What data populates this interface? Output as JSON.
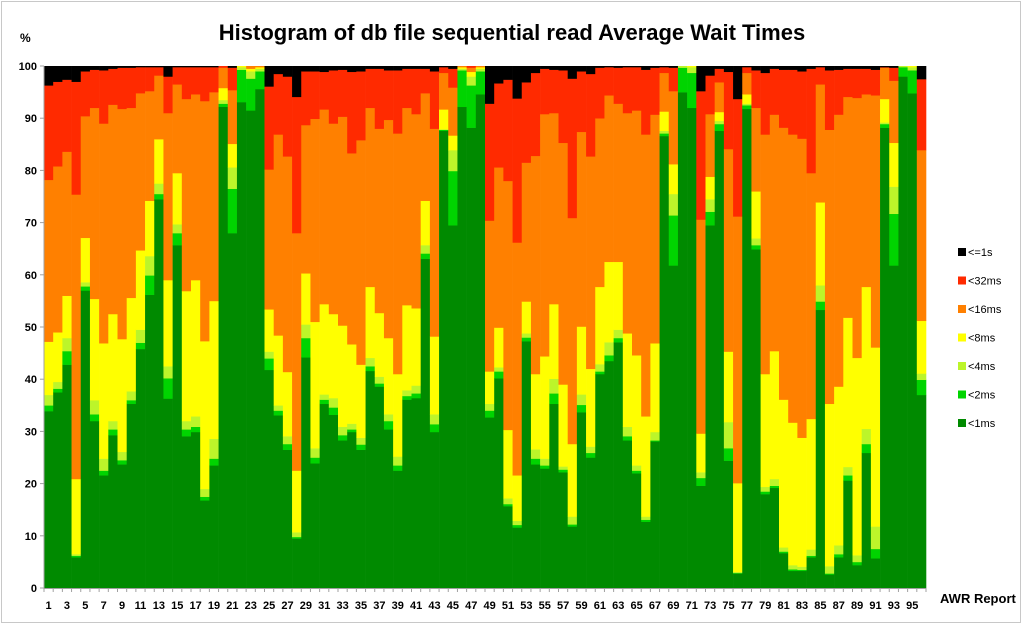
{
  "chart_data": {
    "type": "bar",
    "stacked": "100%",
    "title": "Histogram of db file sequential read Average Wait Times",
    "ylabel": "%",
    "xlabel": "AWR Report",
    "ylim": [
      0,
      100
    ],
    "yticks": [
      0,
      10,
      20,
      30,
      40,
      50,
      60,
      70,
      80,
      90,
      100
    ],
    "grid": false,
    "legend_position": "right",
    "series_names": [
      "<1ms",
      "<2ms",
      "<4ms",
      "<8ms",
      "<16ms",
      "<32ms",
      "<=1s"
    ],
    "colors": [
      "#008a00",
      "#00d400",
      "#bcf52a",
      "#ffff00",
      "#ff8000",
      "#ff2a00",
      "#000000"
    ],
    "legend_order": [
      "<=1s",
      "<32ms",
      "<16ms",
      "<8ms",
      "<4ms",
      "<2ms",
      "<1ms"
    ],
    "categories": [
      1,
      2,
      3,
      4,
      5,
      6,
      7,
      8,
      9,
      10,
      11,
      12,
      13,
      14,
      15,
      16,
      17,
      18,
      19,
      20,
      21,
      22,
      23,
      24,
      25,
      26,
      27,
      28,
      29,
      30,
      31,
      32,
      33,
      34,
      35,
      36,
      37,
      38,
      39,
      40,
      41,
      42,
      43,
      44,
      45,
      46,
      47,
      48,
      49,
      50,
      51,
      52,
      53,
      54,
      55,
      56,
      57,
      58,
      59,
      60,
      61,
      62,
      63,
      64,
      65,
      66,
      67,
      68,
      69,
      70,
      71,
      72,
      73,
      74,
      75,
      76,
      77,
      78,
      79,
      80,
      81,
      82,
      83,
      84,
      85,
      86,
      87,
      88,
      89,
      90,
      91,
      92,
      93,
      94,
      95,
      96
    ],
    "xtick_labels": [
      "1",
      "3",
      "5",
      "7",
      "9",
      "11",
      "13",
      "15",
      "17",
      "19",
      "21",
      "23",
      "25",
      "27",
      "29",
      "31",
      "33",
      "35",
      "37",
      "39",
      "41",
      "43",
      "45",
      "47",
      "49",
      "51",
      "53",
      "55",
      "57",
      "59",
      "61",
      "63",
      "65",
      "67",
      "69",
      "71",
      "73",
      "75",
      "77",
      "79",
      "81",
      "83",
      "85",
      "87",
      "89",
      "91",
      "93",
      "95"
    ],
    "values_by_report": [
      [
        33.9,
        1.1,
        2.0,
        10.2,
        31.0,
        18.1,
        3.7
      ],
      [
        37.5,
        0.7,
        1.3,
        9.5,
        31.8,
        16.2,
        3.0
      ],
      [
        42.8,
        2.6,
        2.5,
        8.1,
        27.6,
        13.8,
        2.6
      ],
      [
        5.9,
        0.3,
        0.3,
        14.4,
        54.5,
        21.6,
        3.0
      ],
      [
        57.0,
        0.8,
        0.8,
        8.5,
        23.3,
        8.6,
        1.0
      ],
      [
        32.0,
        1.3,
        2.7,
        19.4,
        36.6,
        7.3,
        0.7
      ],
      [
        21.6,
        0.9,
        2.3,
        22.1,
        42.1,
        10.2,
        0.8
      ],
      [
        29.3,
        1.1,
        1.6,
        20.5,
        40.1,
        6.9,
        0.5
      ],
      [
        23.7,
        0.8,
        1.6,
        21.6,
        44.1,
        7.9,
        0.3
      ],
      [
        35.3,
        0.7,
        1.7,
        17.9,
        36.4,
        7.7,
        0.3
      ],
      [
        45.8,
        1.2,
        2.5,
        15.2,
        30.1,
        5.0,
        0.2
      ],
      [
        56.2,
        3.7,
        3.7,
        10.6,
        21.0,
        4.6,
        0.2
      ],
      [
        74.5,
        1.0,
        2.0,
        8.5,
        12.2,
        1.6,
        0.2
      ],
      [
        36.3,
        3.9,
        2.3,
        16.5,
        32.0,
        7.0,
        2.0
      ],
      [
        65.7,
        2.3,
        1.7,
        9.8,
        17.0,
        3.3,
        0.2
      ],
      [
        29.1,
        1.3,
        1.6,
        24.9,
        36.8,
        6.1,
        0.2
      ],
      [
        29.9,
        1.0,
        2.0,
        26.1,
        35.6,
        5.2,
        0.2
      ],
      [
        16.8,
        0.7,
        1.5,
        28.3,
        46.0,
        6.5,
        0.2
      ],
      [
        23.5,
        1.3,
        3.8,
        26.4,
        40.0,
        4.8,
        0.2
      ],
      [
        92.2,
        0.6,
        0.7,
        2.3,
        3.9,
        0.3,
        0
      ],
      [
        68.0,
        8.5,
        4.1,
        4.5,
        10.3,
        4.3,
        0.3
      ],
      [
        93.1,
        6.2,
        0.5,
        0.2,
        0,
        0,
        0
      ],
      [
        91.5,
        6.1,
        1.4,
        0.5,
        0.5,
        0,
        0
      ],
      [
        95.6,
        3.4,
        0.5,
        0.3,
        0.2,
        0,
        0
      ],
      [
        41.8,
        2.2,
        1.3,
        8.1,
        26.8,
        15.9,
        3.9
      ],
      [
        33.1,
        0.9,
        1.0,
        13.4,
        38.5,
        11.6,
        1.5
      ],
      [
        26.5,
        1.1,
        1.5,
        12.3,
        41.3,
        15.3,
        2.0
      ],
      [
        9.5,
        0.3,
        0.9,
        11.8,
        45.5,
        26.1,
        5.9
      ],
      [
        44.2,
        3.7,
        2.6,
        9.8,
        28.4,
        10.3,
        1.0
      ],
      [
        23.9,
        1.1,
        1.8,
        24.2,
        38.9,
        9.1,
        1.0
      ],
      [
        35.3,
        0.8,
        1.0,
        17.3,
        37.3,
        7.2,
        1.1
      ],
      [
        33.2,
        1.4,
        1.8,
        16.1,
        36.5,
        10.2,
        0.8
      ],
      [
        28.3,
        1.0,
        1.6,
        19.4,
        40.0,
        9.0,
        0.7
      ],
      [
        29.9,
        0.5,
        1.1,
        15.2,
        36.6,
        15.6,
        1.1
      ],
      [
        26.5,
        1.0,
        1.3,
        14.0,
        43.0,
        13.2,
        1.0
      ],
      [
        41.6,
        0.9,
        1.6,
        13.6,
        34.3,
        7.5,
        0.5
      ],
      [
        38.6,
        0.6,
        1.3,
        12.2,
        35.3,
        11.5,
        0.5
      ],
      [
        30.4,
        1.6,
        1.3,
        14.6,
        41.8,
        9.5,
        0.8
      ],
      [
        22.5,
        1.0,
        1.7,
        15.8,
        46.1,
        12.1,
        0.8
      ],
      [
        36.1,
        0.7,
        1.1,
        16.3,
        37.8,
        7.5,
        0.5
      ],
      [
        36.4,
        0.9,
        1.5,
        14.8,
        37.2,
        8.7,
        0.5
      ],
      [
        63.1,
        1.0,
        1.6,
        8.5,
        20.6,
        4.7,
        0.5
      ],
      [
        29.9,
        1.5,
        1.9,
        14.9,
        39.8,
        11.0,
        1.0
      ],
      [
        87.6,
        0.2,
        0.1,
        3.8,
        7.0,
        1.1,
        0.2
      ],
      [
        69.5,
        10.4,
        4.0,
        2.8,
        9.2,
        3.6,
        0.5
      ],
      [
        92.2,
        7.0,
        0.3,
        0.3,
        0.2,
        0,
        0
      ],
      [
        88.2,
        8.1,
        1.7,
        0.9,
        0.8,
        0.3,
        0
      ],
      [
        94.6,
        4.4,
        0.5,
        0.3,
        0.2,
        0,
        0
      ],
      [
        32.7,
        1.3,
        1.3,
        6.2,
        28.9,
        22.4,
        7.2
      ],
      [
        40.2,
        1.3,
        0.8,
        7.6,
        30.7,
        16.1,
        3.3
      ],
      [
        15.7,
        0.4,
        1.1,
        13.1,
        47.7,
        19.4,
        2.6
      ],
      [
        11.6,
        0.5,
        0.8,
        8.7,
        44.6,
        27.6,
        6.2
      ],
      [
        47.3,
        0.7,
        0.8,
        6.1,
        26.6,
        15.4,
        3.1
      ],
      [
        23.7,
        1.1,
        1.8,
        14.4,
        41.8,
        15.9,
        1.3
      ],
      [
        22.9,
        0.6,
        1.3,
        19.6,
        46.4,
        8.7,
        0.5
      ],
      [
        35.3,
        2.0,
        2.8,
        14.3,
        36.6,
        8.3,
        0.7
      ],
      [
        22.2,
        0.5,
        0.6,
        15.7,
        46.3,
        13.9,
        0.8
      ],
      [
        11.8,
        0.4,
        1.5,
        13.9,
        43.3,
        26.7,
        2.4
      ],
      [
        33.7,
        1.4,
        2.0,
        13.0,
        37.3,
        11.6,
        1.0
      ],
      [
        25.0,
        0.9,
        1.2,
        14.9,
        40.7,
        15.8,
        1.5
      ],
      [
        41.0,
        0.5,
        1.4,
        14.8,
        32.3,
        9.7,
        0.3
      ],
      [
        43.5,
        1.1,
        2.5,
        15.4,
        31.9,
        5.4,
        0.2
      ],
      [
        47.1,
        0.8,
        1.6,
        13.0,
        30.3,
        6.9,
        0.3
      ],
      [
        28.3,
        0.8,
        1.8,
        17.9,
        42.2,
        8.8,
        0.2
      ],
      [
        22.0,
        0.5,
        1.0,
        21.1,
        46.9,
        8.3,
        0.2
      ],
      [
        12.7,
        0.4,
        0.6,
        19.2,
        54.0,
        12.4,
        0.7
      ],
      [
        28.1,
        0.2,
        1.6,
        17.0,
        43.8,
        9.0,
        0.3
      ],
      [
        86.6,
        0.5,
        0.5,
        3.7,
        7.4,
        1.1,
        0.2
      ],
      [
        61.8,
        9.6,
        4.1,
        5.7,
        14.0,
        4.5,
        0.3
      ],
      [
        95.0,
        4.7,
        0.3,
        0,
        0,
        0,
        0
      ],
      [
        92.0,
        6.7,
        1.1,
        0.2,
        0,
        0,
        0
      ],
      [
        19.6,
        1.5,
        1.1,
        7.4,
        41.0,
        24.6,
        4.8
      ],
      [
        69.5,
        2.6,
        2.4,
        4.3,
        12.0,
        7.4,
        1.8
      ],
      [
        87.6,
        1.3,
        0.6,
        1.7,
        5.7,
        2.6,
        0.5
      ],
      [
        24.4,
        2.4,
        5.0,
        13.5,
        38.8,
        14.8,
        1.1
      ],
      [
        2.8,
        0.1,
        0.2,
        17.0,
        51.1,
        22.5,
        6.3
      ],
      [
        91.8,
        0.7,
        0.3,
        1.8,
        4.1,
        1.1,
        0.2
      ],
      [
        64.9,
        0.8,
        1.3,
        9.0,
        16.0,
        7.2,
        0.8
      ],
      [
        18.0,
        0.5,
        0.9,
        21.6,
        45.9,
        11.8,
        1.3
      ],
      [
        19.2,
        0.4,
        1.3,
        24.5,
        45.3,
        8.8,
        0.5
      ],
      [
        6.7,
        0.3,
        0.8,
        28.3,
        52.1,
        11.1,
        0.7
      ],
      [
        3.3,
        0.3,
        0.8,
        27.3,
        55.2,
        12.4,
        0.7
      ],
      [
        3.3,
        0.2,
        0.6,
        24.7,
        57.3,
        12.9,
        1.0
      ],
      [
        5.9,
        0.3,
        1.2,
        25.0,
        47.1,
        20.0,
        0.5
      ],
      [
        53.3,
        1.6,
        3.1,
        15.9,
        22.6,
        3.3,
        0.2
      ],
      [
        2.6,
        0.2,
        1.4,
        31.1,
        52.5,
        11.4,
        0.8
      ],
      [
        5.9,
        0.6,
        1.7,
        30.4,
        52.1,
        8.6,
        0.7
      ],
      [
        20.6,
        1.0,
        1.6,
        28.6,
        42.3,
        5.4,
        0.5
      ],
      [
        4.4,
        0.6,
        1.3,
        37.8,
        49.8,
        5.6,
        0.5
      ],
      [
        25.9,
        1.7,
        2.9,
        27.2,
        36.9,
        4.9,
        0.5
      ],
      [
        5.7,
        1.8,
        4.3,
        34.3,
        48.3,
        4.9,
        0.7
      ],
      [
        88.2,
        0.7,
        0.3,
        4.5,
        6.0,
        0.1,
        0.2
      ],
      [
        61.8,
        9.9,
        5.2,
        8.4,
        11.9,
        2.5,
        0.3
      ],
      [
        98.0,
        1.8,
        0.2,
        0,
        0,
        0,
        0
      ],
      [
        94.8,
        4.4,
        0.6,
        0.2,
        0,
        0,
        0
      ],
      [
        37.0,
        2.9,
        1.2,
        10.1,
        32.7,
        13.6,
        2.5
      ]
    ]
  }
}
